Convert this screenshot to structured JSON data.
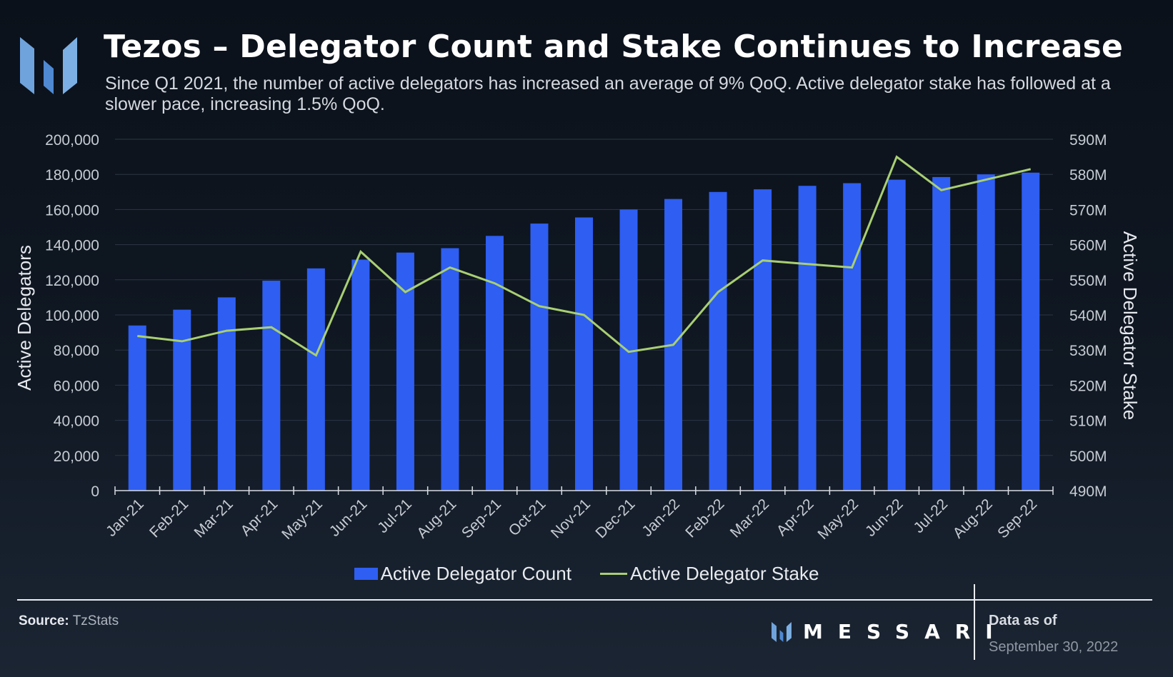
{
  "header": {
    "title": "Tezos – Delegator Count and Stake Continues to Increase",
    "subtitle": "Since Q1 2021, the number of active delegators has increased an average of 9% QoQ. Active delegator stake has followed at a slower pace, increasing 1.5% QoQ."
  },
  "chart_data": {
    "type": "bar",
    "categories": [
      "Jan-21",
      "Feb-21",
      "Mar-21",
      "Apr-21",
      "May-21",
      "Jun-21",
      "Jul-21",
      "Aug-21",
      "Sep-21",
      "Oct-21",
      "Nov-21",
      "Dec-21",
      "Jan-22",
      "Feb-22",
      "Mar-22",
      "Apr-22",
      "May-22",
      "Jun-22",
      "Jul-22",
      "Aug-22",
      "Sep-22"
    ],
    "series": [
      {
        "name": "Active Delegator Count",
        "type": "bar",
        "axis": "left",
        "color": "#2e5ef2",
        "values": [
          94000,
          103000,
          110000,
          119500,
          126500,
          131500,
          135500,
          138000,
          145000,
          152000,
          155500,
          160000,
          166000,
          170000,
          171500,
          173500,
          175000,
          177000,
          178500,
          180000,
          181000
        ]
      },
      {
        "name": "Active Delegator Stake",
        "type": "line",
        "axis": "right",
        "color": "#a9cf72",
        "values": [
          534,
          532.5,
          535.5,
          536.5,
          528.5,
          558,
          546.5,
          553.5,
          549,
          542.5,
          540,
          529.5,
          531.5,
          546.5,
          555.5,
          554.5,
          553.5,
          585,
          575.5,
          578.5,
          581.5
        ]
      }
    ],
    "y_left": {
      "label": "Active Delegators",
      "range": [
        0,
        200000
      ],
      "ticks": [
        "0",
        "20,000",
        "40,000",
        "60,000",
        "80,000",
        "100,000",
        "120,000",
        "140,000",
        "160,000",
        "180,000",
        "200,000"
      ]
    },
    "y_right": {
      "label": "Active Delegator Stake",
      "range": [
        490,
        590
      ],
      "unit": "M",
      "ticks": [
        "490M",
        "500M",
        "510M",
        "520M",
        "530M",
        "540M",
        "550M",
        "560M",
        "570M",
        "580M",
        "590M"
      ]
    },
    "grid": true,
    "legend_position": "bottom-center"
  },
  "footer": {
    "source_label": "Source:",
    "source_value": "TzStats",
    "brand": "MESSARI",
    "data_as_of_label": "Data as of",
    "data_as_of_date": "September 30, 2022"
  },
  "colors": {
    "bar": "#2e5ef2",
    "line": "#a9cf72",
    "logo": "#6fa3dc"
  }
}
